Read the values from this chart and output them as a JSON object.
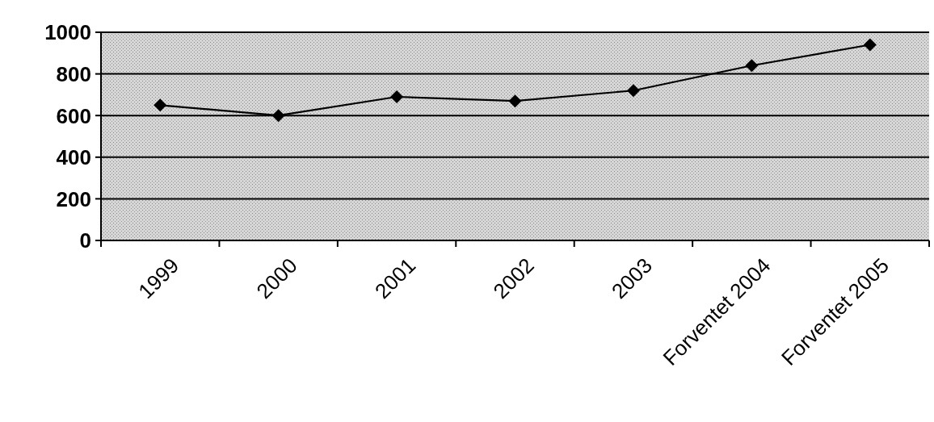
{
  "chart_data": {
    "type": "line",
    "categories": [
      "1999",
      "2000",
      "2001",
      "2002",
      "2003",
      "Forventet 2004",
      "Forventet 2005"
    ],
    "series": [
      {
        "color": "#000000",
        "values": [
          650,
          600,
          690,
          670,
          720,
          840,
          940
        ]
      }
    ],
    "ylim": [
      0,
      1000
    ],
    "yticks": [
      0,
      200,
      400,
      600,
      800,
      1000
    ],
    "grid": "y",
    "marker": "diamond",
    "line_style": "solid"
  }
}
